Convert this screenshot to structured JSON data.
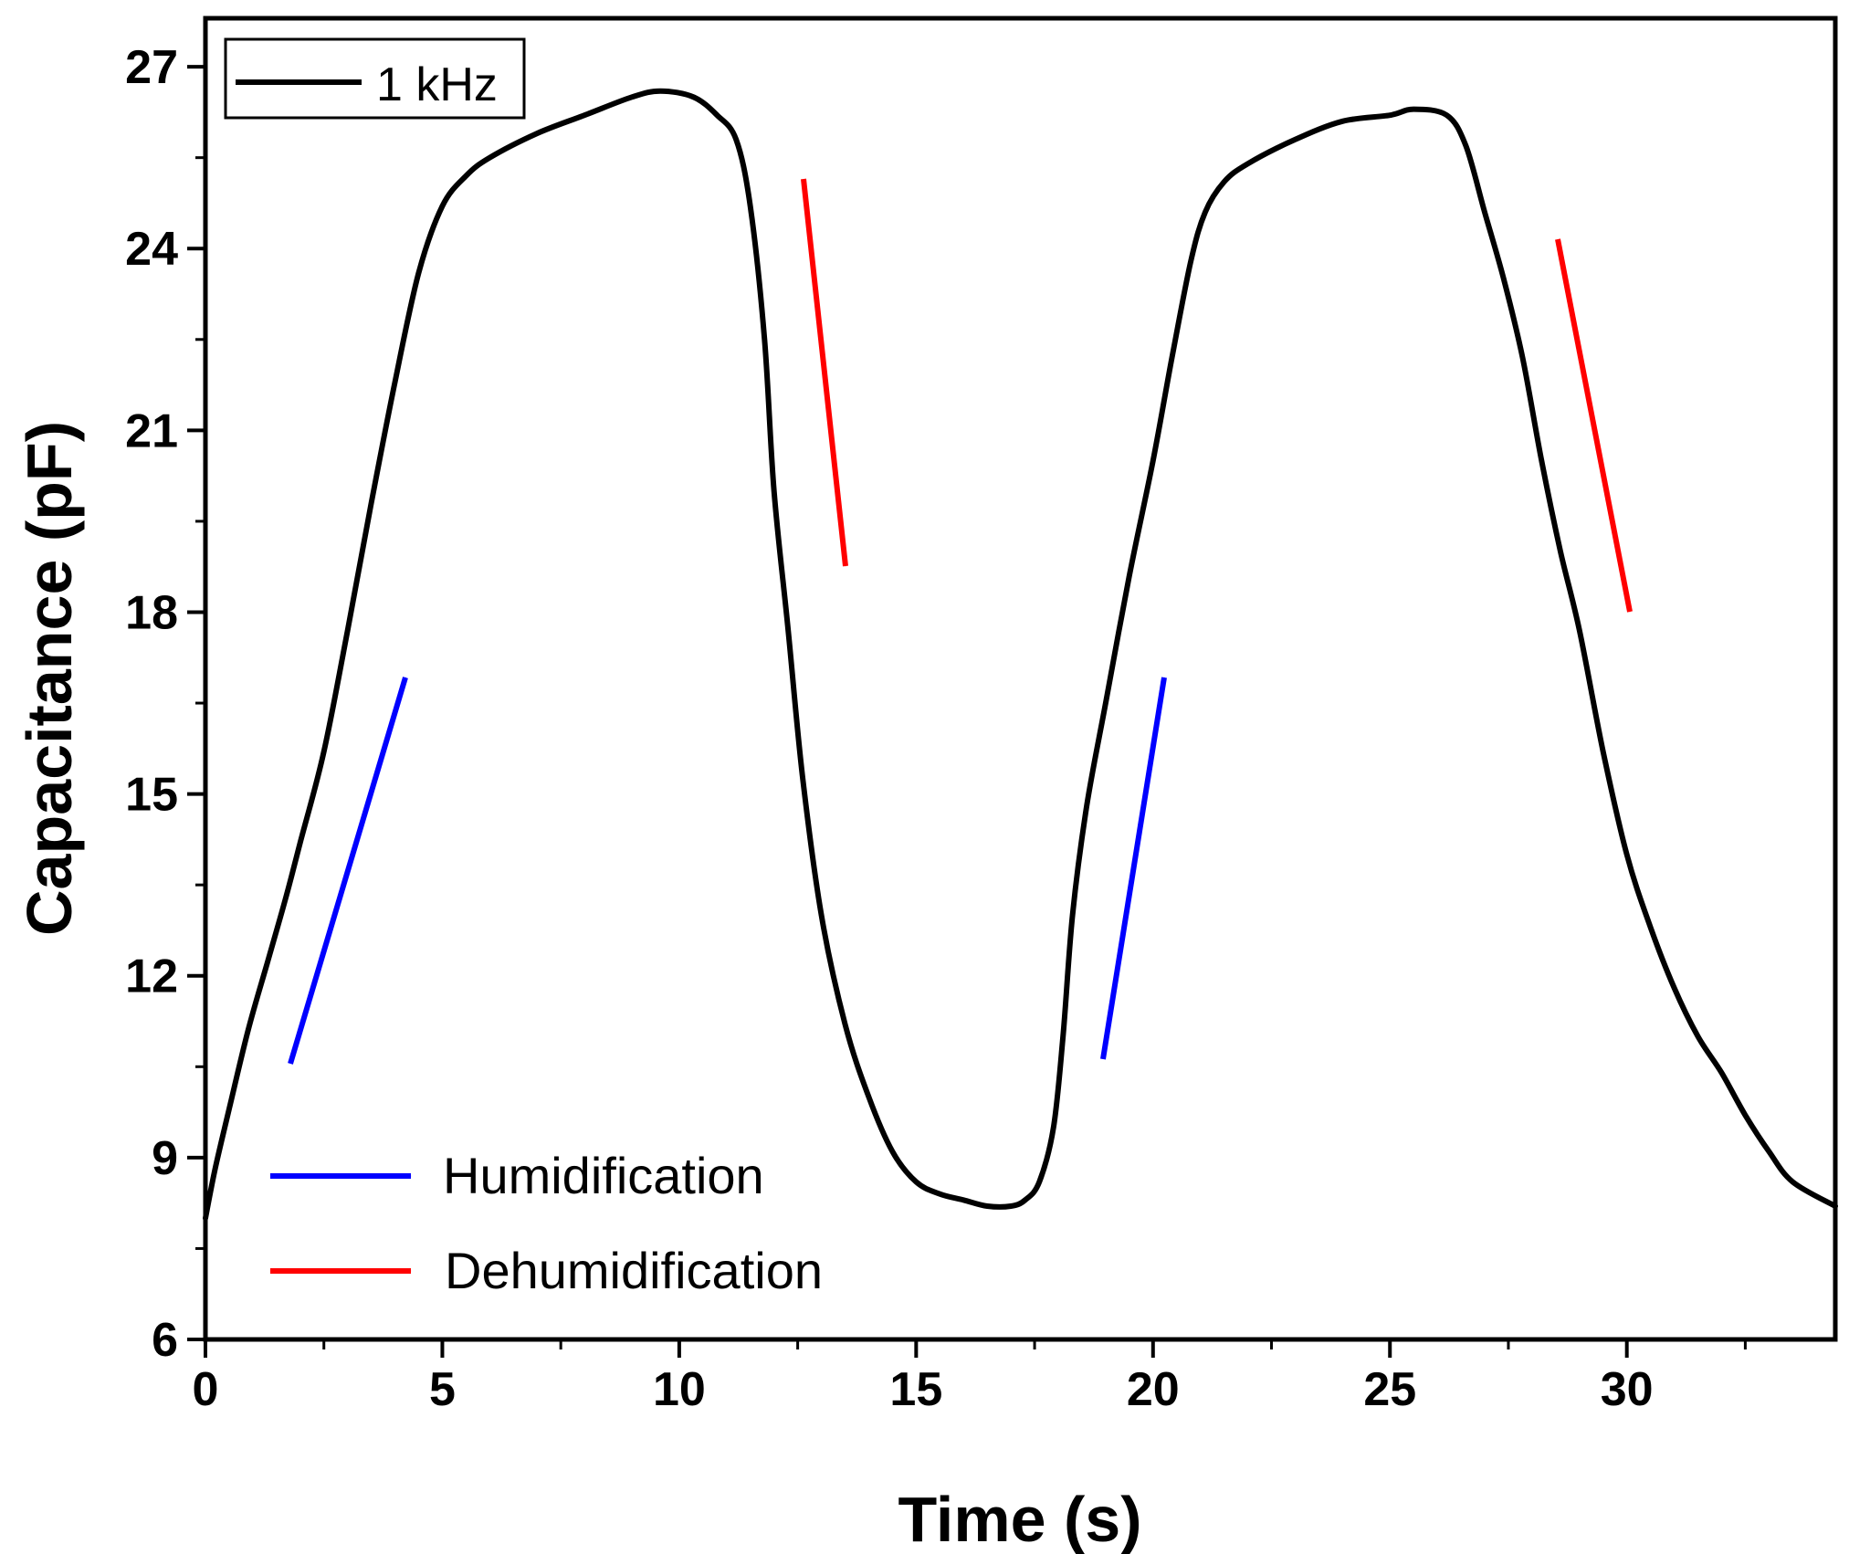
{
  "chart_data": {
    "type": "line",
    "title": "",
    "xlabel": "Time (s)",
    "ylabel": "Capacitance (pF)",
    "xlim": [
      0,
      34.4
    ],
    "ylim": [
      6,
      27.8
    ],
    "xticks": [
      0,
      5,
      10,
      15,
      20,
      25,
      30
    ],
    "yticks": [
      6,
      9,
      12,
      15,
      18,
      21,
      24,
      27
    ],
    "xticks_minor": [
      2.5,
      7.5,
      12.5,
      17.5,
      22.5,
      27.5,
      32.5
    ],
    "yticks_minor": [
      7.5,
      10.5,
      13.5,
      16.5,
      19.5,
      22.5,
      25.5
    ],
    "grid": false,
    "legend": {
      "position": "top-left",
      "entries": [
        {
          "label": "1 kHz",
          "color": "#000000"
        }
      ]
    },
    "series": [
      {
        "name": "1 kHz",
        "color": "#000000",
        "x": [
          0,
          0.2,
          0.5,
          0.9,
          1.3,
          1.7,
          2.0,
          2.5,
          3.0,
          3.5,
          4.0,
          4.5,
          5.0,
          5.5,
          6.0,
          7.0,
          8.0,
          9.0,
          9.6,
          10.3,
          10.8,
          11.2,
          11.5,
          11.8,
          12.0,
          12.3,
          12.6,
          13.0,
          13.5,
          14.0,
          14.5,
          15.0,
          15.5,
          16.0,
          16.5,
          17.0,
          17.3,
          17.6,
          17.9,
          18.1,
          18.3,
          18.6,
          19.0,
          19.5,
          20.0,
          20.4,
          20.8,
          21.1,
          21.5,
          22.0,
          23.0,
          24.0,
          25.0,
          25.5,
          26.2,
          26.6,
          27.0,
          27.4,
          27.8,
          28.2,
          28.6,
          29.0,
          29.5,
          30.0,
          30.5,
          31.0,
          31.5,
          32.0,
          32.5,
          33.0,
          33.5,
          34.4
        ],
        "y": [
          8.0,
          8.8,
          9.8,
          11.1,
          12.2,
          13.3,
          14.2,
          15.7,
          17.7,
          19.8,
          21.8,
          23.6,
          24.7,
          25.2,
          25.5,
          25.9,
          26.2,
          26.5,
          26.6,
          26.5,
          26.2,
          25.8,
          24.7,
          22.5,
          20.0,
          17.7,
          15.3,
          13.0,
          11.2,
          10.0,
          9.1,
          8.6,
          8.4,
          8.3,
          8.2,
          8.2,
          8.3,
          8.6,
          9.5,
          11.0,
          13.0,
          14.8,
          16.5,
          18.6,
          20.5,
          22.2,
          23.8,
          24.6,
          25.1,
          25.4,
          25.8,
          26.1,
          26.2,
          26.3,
          26.2,
          25.7,
          24.6,
          23.5,
          22.2,
          20.5,
          19.0,
          17.7,
          15.7,
          14.0,
          12.8,
          11.8,
          11.0,
          10.4,
          9.7,
          9.1,
          8.6,
          8.2
        ]
      }
    ],
    "annotations": {
      "humidification_label": "Humidification",
      "dehumidification_label": "Dehumidification",
      "humidification_color": "#0000ff",
      "dehumidification_color": "#ff0000"
    }
  }
}
